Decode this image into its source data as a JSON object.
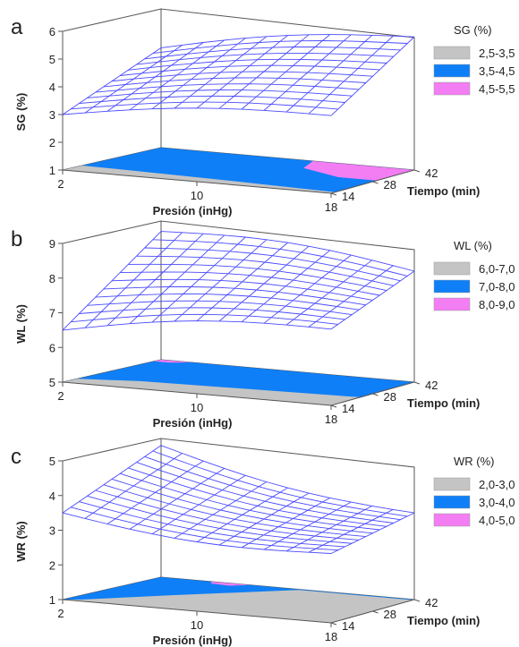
{
  "figure": {
    "type": "3d-response-surface-with-contour-projection",
    "colors": {
      "grid": "#4a4aff",
      "gray": "#c4c4c4",
      "blue": "#0f7ff7",
      "pink": "#f37df3",
      "frame": "#555555",
      "text": "#222222"
    }
  },
  "chart_data": [
    {
      "panel_label": "a",
      "type": "surface3d",
      "zlabel": "SG (%)",
      "xlabel": "Presión (inHg)",
      "ylabel": "Tiempo (min)",
      "x_ticks": [
        "2",
        "10",
        "18"
      ],
      "y_ticks": [
        "14",
        "28",
        "42"
      ],
      "z_ticks": [
        "1",
        "2",
        "3",
        "4",
        "5",
        "6"
      ],
      "xlim": [
        2,
        18
      ],
      "ylim": [
        14,
        42
      ],
      "zlim": [
        1,
        6
      ],
      "legend_title": "SG (%)",
      "legend": [
        {
          "label": "2,5-3,5",
          "color": "#c4c4c4"
        },
        {
          "label": "3,5-4,5",
          "color": "#0f7ff7"
        },
        {
          "label": "4,5-5,5",
          "color": "#f37df3"
        }
      ],
      "surface_corners": {
        "p2_t14": 3.0,
        "p18_t14": 3.8,
        "p2_t42": 4.6,
        "p18_t42": 5.8
      }
    },
    {
      "panel_label": "b",
      "type": "surface3d",
      "zlabel": "WL (%)",
      "xlabel": "Presión (inHg)",
      "ylabel": "Tiempo (min)",
      "x_ticks": [
        "2",
        "10",
        "18"
      ],
      "y_ticks": [
        "14",
        "28",
        "42"
      ],
      "z_ticks": [
        "5",
        "6",
        "7",
        "8",
        "9"
      ],
      "xlim": [
        2,
        18
      ],
      "ylim": [
        14,
        42
      ],
      "zlim": [
        5,
        9
      ],
      "legend_title": "WL (%)",
      "legend": [
        {
          "label": "6,0-7,0",
          "color": "#c4c4c4"
        },
        {
          "label": "7,0-8,0",
          "color": "#0f7ff7"
        },
        {
          "label": "8,0-9,0",
          "color": "#f37df3"
        }
      ],
      "surface_corners": {
        "p2_t14": 6.5,
        "p18_t14": 7.2,
        "p2_t42": 8.7,
        "p18_t42": 8.2
      }
    },
    {
      "panel_label": "c",
      "type": "surface3d",
      "zlabel": "WR (%)",
      "xlabel": "Presión (inHg)",
      "ylabel": "Tiempo (min)",
      "x_ticks": [
        "2",
        "10",
        "18"
      ],
      "y_ticks": [
        "14",
        "28",
        "42"
      ],
      "z_ticks": [
        "1",
        "2",
        "3",
        "4",
        "5"
      ],
      "xlim": [
        2,
        18
      ],
      "ylim": [
        14,
        42
      ],
      "zlim": [
        1,
        5
      ],
      "legend_title": "WR (%)",
      "legend": [
        {
          "label": "2,0-3,0",
          "color": "#c4c4c4"
        },
        {
          "label": "3,0-4,0",
          "color": "#0f7ff7"
        },
        {
          "label": "4,0-5,0",
          "color": "#f37df3"
        }
      ],
      "surface_corners": {
        "p2_t14": 3.5,
        "p18_t14": 3.0,
        "p2_t42": 4.8,
        "p18_t42": 3.5
      }
    }
  ]
}
